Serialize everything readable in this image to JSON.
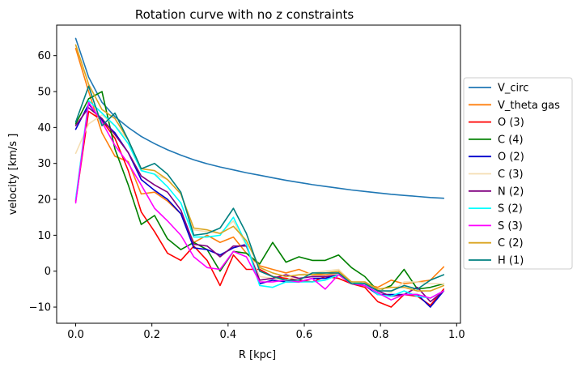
{
  "chart_data": {
    "type": "line",
    "title": "Rotation curve with no z constraints",
    "xlabel": "R [kpc]",
    "ylabel": "velocity [km/s ]",
    "xlim": [
      -0.05,
      1.01
    ],
    "ylim": [
      -14.5,
      68.5
    ],
    "xticks": [
      0.0,
      0.2,
      0.4,
      0.6,
      0.8,
      1.0
    ],
    "xtick_labels": [
      "0.0",
      "0.2",
      "0.4",
      "0.6",
      "0.8",
      "1.0"
    ],
    "yticks": [
      -10,
      0,
      10,
      20,
      30,
      40,
      50,
      60
    ],
    "ytick_labels": [
      "−10",
      "0",
      "10",
      "20",
      "30",
      "40",
      "50",
      "60"
    ],
    "legend_position": "center-right-outside",
    "x": [
      0.0,
      0.034,
      0.069,
      0.103,
      0.138,
      0.172,
      0.207,
      0.241,
      0.276,
      0.31,
      0.345,
      0.379,
      0.414,
      0.448,
      0.483,
      0.517,
      0.552,
      0.586,
      0.621,
      0.655,
      0.69,
      0.724,
      0.759,
      0.793,
      0.828,
      0.862,
      0.897,
      0.931,
      0.966
    ],
    "series": [
      {
        "name": "V_circ",
        "color": "#1f77b4",
        "x": [
          0.0,
          0.034,
          0.069,
          0.103,
          0.138,
          0.172,
          0.207,
          0.241,
          0.276,
          0.31,
          0.345,
          0.379,
          0.414,
          0.448,
          0.483,
          0.517,
          0.552,
          0.586,
          0.621,
          0.655,
          0.69,
          0.724,
          0.759,
          0.793,
          0.828,
          0.862,
          0.897,
          0.931,
          0.966
        ],
        "values": [
          64.8,
          54.0,
          47.0,
          43.0,
          40.0,
          37.5,
          35.5,
          33.8,
          32.3,
          31.0,
          29.9,
          29.0,
          28.2,
          27.4,
          26.7,
          26.0,
          25.3,
          24.7,
          24.1,
          23.6,
          23.1,
          22.6,
          22.2,
          21.8,
          21.4,
          21.1,
          20.8,
          20.5,
          20.3
        ]
      },
      {
        "name": "V_theta gas",
        "color": "#ff7f0e",
        "x": [
          0.0,
          0.034,
          0.069,
          0.103,
          0.138,
          0.172,
          0.207,
          0.241,
          0.276,
          0.31,
          0.345,
          0.379,
          0.414,
          0.448,
          0.483,
          0.517,
          0.552,
          0.586,
          0.621,
          0.655,
          0.69,
          0.724,
          0.759,
          0.793,
          0.828,
          0.862,
          0.897,
          0.931,
          0.966
        ],
        "values": [
          62.0,
          50.0,
          38.5,
          32.0,
          30.5,
          21.5,
          22.0,
          19.5,
          16.0,
          8.0,
          10.0,
          8.0,
          9.5,
          5.0,
          1.5,
          0.5,
          -0.5,
          0.5,
          -1.0,
          -1.0,
          -0.5,
          -3.0,
          -3.5,
          -4.5,
          -2.5,
          -3.5,
          -3.0,
          -2.5,
          1.2
        ]
      },
      {
        "name": "O (3)",
        "color": "#ff0000",
        "x": [
          0.0,
          0.034,
          0.069,
          0.103,
          0.138,
          0.172,
          0.207,
          0.241,
          0.276,
          0.31,
          0.345,
          0.379,
          0.414,
          0.448,
          0.483,
          0.517,
          0.552,
          0.586,
          0.621,
          0.655,
          0.69,
          0.724,
          0.759,
          0.793,
          0.828,
          0.862,
          0.897,
          0.931,
          0.966
        ],
        "values": [
          19.5,
          44.5,
          42.0,
          37.0,
          28.0,
          16.5,
          11.0,
          5.0,
          3.0,
          7.0,
          3.0,
          -4.0,
          4.5,
          0.5,
          0.5,
          -1.5,
          -2.0,
          -2.5,
          -3.0,
          -1.5,
          -2.0,
          -3.5,
          -4.5,
          -8.5,
          -10.0,
          -6.5,
          -7.0,
          -9.5,
          -5.0
        ]
      },
      {
        "name": "C (4)",
        "color": "#008000",
        "x": [
          0.0,
          0.034,
          0.069,
          0.103,
          0.138,
          0.172,
          0.207,
          0.241,
          0.276,
          0.31,
          0.345,
          0.379,
          0.414,
          0.448,
          0.483,
          0.517,
          0.552,
          0.586,
          0.621,
          0.655,
          0.69,
          0.724,
          0.759,
          0.793,
          0.828,
          0.862,
          0.897,
          0.931,
          0.966
        ],
        "values": [
          41.0,
          48.0,
          50.0,
          34.0,
          24.0,
          13.0,
          15.5,
          9.0,
          6.0,
          8.0,
          6.0,
          0.0,
          5.5,
          5.0,
          2.0,
          8.0,
          2.5,
          4.0,
          3.0,
          3.0,
          4.5,
          1.0,
          -1.5,
          -5.5,
          -4.0,
          0.5,
          -5.0,
          -4.5,
          -3.5
        ]
      },
      {
        "name": "O (2)",
        "color": "#0000cd",
        "x": [
          0.0,
          0.034,
          0.069,
          0.103,
          0.138,
          0.172,
          0.207,
          0.241,
          0.276,
          0.31,
          0.345,
          0.379,
          0.414,
          0.448,
          0.483,
          0.517,
          0.552,
          0.586,
          0.621,
          0.655,
          0.69,
          0.724,
          0.759,
          0.793,
          0.828,
          0.862,
          0.897,
          0.931,
          0.966
        ],
        "values": [
          39.5,
          46.5,
          42.0,
          38.5,
          33.0,
          25.5,
          22.5,
          20.0,
          16.0,
          6.5,
          6.0,
          4.5,
          6.5,
          7.5,
          -3.5,
          -2.5,
          -3.0,
          -3.0,
          -2.0,
          -2.0,
          -1.0,
          -3.5,
          -4.0,
          -6.5,
          -6.5,
          -6.5,
          -6.5,
          -10.0,
          -5.5
        ]
      },
      {
        "name": "C (3)",
        "color": "#f5deb3",
        "x": [
          0.0,
          0.034,
          0.069,
          0.103,
          0.138,
          0.172,
          0.207,
          0.241,
          0.276,
          0.31,
          0.345,
          0.379,
          0.414,
          0.448,
          0.483,
          0.517,
          0.552,
          0.586,
          0.621,
          0.655,
          0.69,
          0.724,
          0.759,
          0.793,
          0.828,
          0.862,
          0.897,
          0.931,
          0.966
        ],
        "values": [
          32.8,
          41.0,
          43.5,
          40.5,
          36.5,
          28.0,
          27.0,
          25.5,
          21.5,
          11.5,
          11.0,
          10.5,
          14.0,
          7.0,
          -1.5,
          -2.0,
          -2.5,
          -1.0,
          -0.5,
          0.0,
          0.5,
          -3.0,
          -3.0,
          -5.0,
          -6.0,
          -3.0,
          -3.0,
          -3.5,
          -3.5
        ]
      },
      {
        "name": "N (2)",
        "color": "#800080",
        "x": [
          0.0,
          0.034,
          0.069,
          0.103,
          0.138,
          0.172,
          0.207,
          0.241,
          0.276,
          0.31,
          0.345,
          0.379,
          0.414,
          0.448,
          0.483,
          0.517,
          0.552,
          0.586,
          0.621,
          0.655,
          0.69,
          0.724,
          0.759,
          0.793,
          0.828,
          0.862,
          0.897,
          0.931,
          0.966
        ],
        "values": [
          40.5,
          45.5,
          42.5,
          38.0,
          33.0,
          26.5,
          24.0,
          22.0,
          17.0,
          7.5,
          7.0,
          4.0,
          7.0,
          7.0,
          -2.5,
          -2.0,
          -1.0,
          -2.0,
          -1.5,
          -1.5,
          -1.0,
          -3.0,
          -3.5,
          -5.5,
          -7.0,
          -6.5,
          -4.5,
          -8.5,
          -5.5
        ]
      },
      {
        "name": "S (2)",
        "color": "#00ffff",
        "x": [
          0.0,
          0.034,
          0.069,
          0.103,
          0.138,
          0.172,
          0.207,
          0.241,
          0.276,
          0.31,
          0.345,
          0.379,
          0.414,
          0.448,
          0.483,
          0.517,
          0.552,
          0.586,
          0.621,
          0.655,
          0.69,
          0.724,
          0.759,
          0.793,
          0.828,
          0.862,
          0.897,
          0.931,
          0.966
        ],
        "values": [
          20.0,
          47.5,
          44.0,
          40.5,
          35.5,
          28.0,
          27.0,
          23.5,
          19.0,
          9.5,
          9.5,
          10.0,
          15.0,
          7.5,
          -4.0,
          -4.5,
          -3.0,
          -3.0,
          -3.0,
          -2.5,
          -1.0,
          -3.0,
          -3.5,
          -6.5,
          -7.0,
          -5.5,
          -7.0,
          -7.5,
          -5.5
        ]
      },
      {
        "name": "S (3)",
        "color": "#ff00ff",
        "x": [
          0.0,
          0.034,
          0.069,
          0.103,
          0.138,
          0.172,
          0.207,
          0.241,
          0.276,
          0.31,
          0.345,
          0.379,
          0.414,
          0.448,
          0.483,
          0.517,
          0.552,
          0.586,
          0.621,
          0.655,
          0.69,
          0.724,
          0.759,
          0.793,
          0.828,
          0.862,
          0.897,
          0.931,
          0.966
        ],
        "values": [
          19.0,
          47.0,
          41.5,
          35.0,
          30.0,
          24.0,
          17.5,
          14.0,
          10.0,
          4.0,
          1.0,
          0.5,
          5.5,
          4.0,
          -3.0,
          -3.0,
          -2.5,
          -3.0,
          -2.0,
          -5.0,
          -1.0,
          -3.5,
          -4.0,
          -6.0,
          -8.0,
          -6.5,
          -6.5,
          -7.5,
          -5.5
        ]
      },
      {
        "name": "C (2)",
        "color": "#daa520",
        "x": [
          0.0,
          0.034,
          0.069,
          0.103,
          0.138,
          0.172,
          0.207,
          0.241,
          0.276,
          0.31,
          0.345,
          0.379,
          0.414,
          0.448,
          0.483,
          0.517,
          0.552,
          0.586,
          0.621,
          0.655,
          0.69,
          0.724,
          0.759,
          0.793,
          0.828,
          0.862,
          0.897,
          0.931,
          0.966
        ],
        "values": [
          63.0,
          52.0,
          45.0,
          42.5,
          36.5,
          28.5,
          28.0,
          25.5,
          21.5,
          12.0,
          11.5,
          10.5,
          12.5,
          8.5,
          1.0,
          -0.5,
          -1.5,
          -1.0,
          -1.0,
          -0.5,
          0.0,
          -3.0,
          -3.0,
          -5.0,
          -4.5,
          -4.5,
          -5.5,
          -5.5,
          -4.0
        ]
      },
      {
        "name": "H (1)",
        "color": "#008080",
        "x": [
          0.0,
          0.034,
          0.069,
          0.103,
          0.138,
          0.172,
          0.207,
          0.241,
          0.276,
          0.31,
          0.345,
          0.379,
          0.414,
          0.448,
          0.483,
          0.517,
          0.552,
          0.586,
          0.621,
          0.655,
          0.69,
          0.724,
          0.759,
          0.793,
          0.828,
          0.862,
          0.897,
          0.931,
          0.966
        ],
        "values": [
          41.5,
          51.5,
          40.5,
          44.0,
          36.5,
          28.5,
          30.0,
          27.0,
          22.0,
          10.0,
          10.5,
          12.0,
          17.5,
          10.5,
          0.0,
          -1.5,
          -2.5,
          -2.5,
          -0.5,
          -0.5,
          -0.5,
          -3.5,
          -3.5,
          -5.5,
          -5.5,
          -4.0,
          -5.0,
          -2.5,
          -1.0
        ]
      }
    ]
  }
}
